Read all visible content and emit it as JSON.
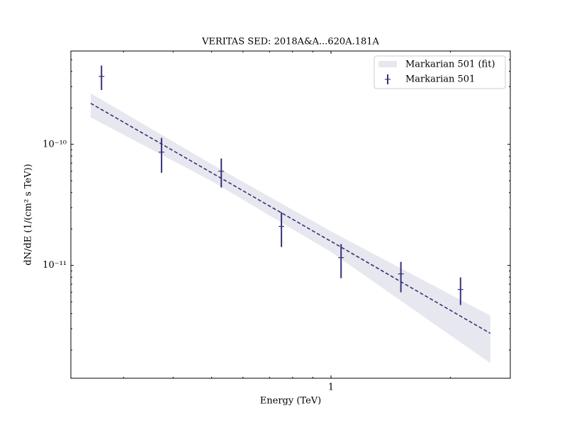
{
  "chart_data": {
    "type": "errorbar",
    "title": "VERITAS SED: 2018A&A...620A.181A",
    "xlabel": "Energy (TeV)",
    "ylabel": "dN/dE (1/(cm² s TeV))",
    "xlog": true,
    "ylog": true,
    "xlim": [
      0.221,
      2.83
    ],
    "ylim": [
      1.17e-12,
      5.9e-10
    ],
    "xticks": [
      1
    ],
    "yticks": [
      {
        "value": 1e-10,
        "label": "10⁻¹⁰"
      },
      {
        "value": 1e-11,
        "label": "10⁻¹¹"
      }
    ],
    "legend": "upper right",
    "fit": {
      "name": "Markarian 501 (fit)",
      "color": "#33337a",
      "band_color": "#e7e7ef",
      "x": [
        0.248,
        0.5,
        1.0,
        2.52
      ],
      "values": [
        2.18e-10,
        5.83e-11,
        1.58e-11,
        2.75e-12
      ],
      "lower": [
        1.67e-10,
        4.97e-11,
        1.29e-11,
        1.56e-12
      ],
      "upper": [
        2.64e-10,
        6.86e-11,
        1.91e-11,
        3.85e-12
      ]
    },
    "series": [
      {
        "name": "Markarian 501",
        "color": "#33337a",
        "x": [
          0.264,
          0.374,
          0.529,
          0.75,
          1.06,
          1.5,
          2.12
        ],
        "values": [
          3.64e-10,
          8.62e-11,
          6e-11,
          2.1e-11,
          1.16e-11,
          8.51e-12,
          6.33e-12
        ],
        "lower": [
          2.81e-10,
          5.83e-11,
          4.4e-11,
          1.42e-11,
          7.85e-12,
          6e-12,
          4.71e-12
        ],
        "upper": [
          4.47e-10,
          1.13e-10,
          7.64e-11,
          2.75e-11,
          1.5e-11,
          1.07e-11,
          7.96e-12
        ]
      }
    ]
  }
}
